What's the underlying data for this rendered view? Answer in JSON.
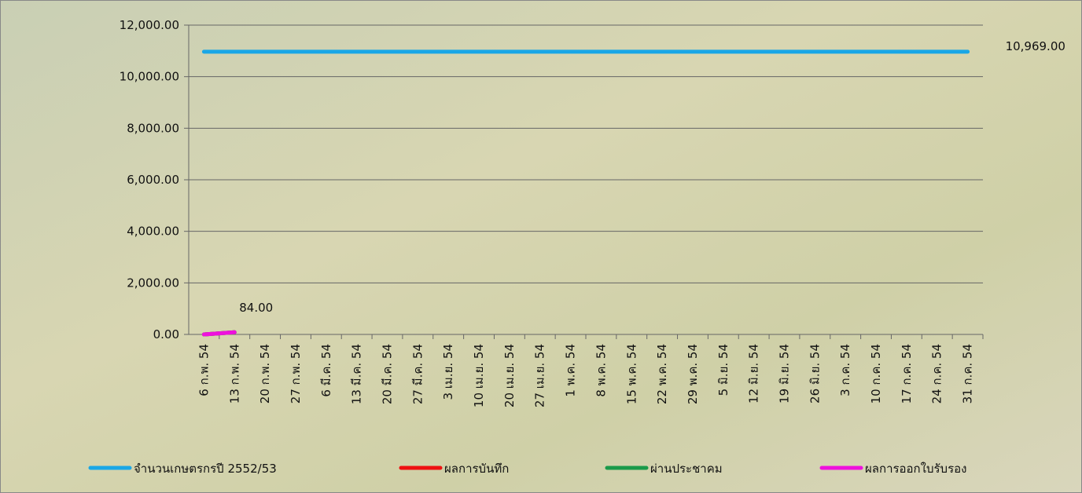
{
  "chart_data": {
    "type": "line",
    "categories": [
      "6 ก.พ. 54",
      "13 ก.พ. 54",
      "20 ก.พ. 54",
      "27 ก.พ. 54",
      "6 มี.ค. 54",
      "13 มี.ค. 54",
      "20 มี.ค. 54",
      "27 มี.ค. 54",
      "3 เม.ย. 54",
      "10 เม.ย. 54",
      "20 เม.ย. 54",
      "27 เม.ย. 54",
      "1 พ.ค. 54",
      "8 พ.ค. 54",
      "15 พ.ค. 54",
      "22 พ.ค. 54",
      "29 พ.ค. 54",
      "5 มิ.ย. 54",
      "12 มิ.ย. 54",
      "19 มิ.ย. 54",
      "26 มิ.ย. 54",
      "3 ก.ค. 54",
      "10 ก.ค. 54",
      "17 ก.ค. 54",
      "24 ก.ค. 54",
      "31 ก.ค. 54"
    ],
    "series": [
      {
        "name": "จำนวนเกษตรกรปี  2552/53",
        "color": "#1aa7e6",
        "values": [
          10969,
          10969,
          10969,
          10969,
          10969,
          10969,
          10969,
          10969,
          10969,
          10969,
          10969,
          10969,
          10969,
          10969,
          10969,
          10969,
          10969,
          10969,
          10969,
          10969,
          10969,
          10969,
          10969,
          10969,
          10969,
          10969
        ],
        "value_labels": [
          null,
          null,
          null,
          null,
          null,
          null,
          null,
          null,
          null,
          null,
          null,
          null,
          null,
          null,
          null,
          null,
          null,
          null,
          null,
          null,
          null,
          null,
          null,
          null,
          null,
          "10,969.00"
        ],
        "label_color": "#111111"
      },
      {
        "name": "ผลการบันทึก",
        "color": "#ee1111",
        "values": [
          0,
          84,
          null,
          null,
          null,
          null,
          null,
          null,
          null,
          null,
          null,
          null,
          null,
          null,
          null,
          null,
          null,
          null,
          null,
          null,
          null,
          null,
          null,
          null,
          null,
          null
        ],
        "value_labels": [
          null,
          "84.00",
          null,
          null,
          null,
          null,
          null,
          null,
          null,
          null,
          null,
          null,
          null,
          null,
          null,
          null,
          null,
          null,
          null,
          null,
          null,
          null,
          null,
          null,
          null,
          null
        ],
        "label_color": "#ee1111"
      },
      {
        "name": "ผ่านประชาคม",
        "color": "#1a9a4a",
        "values": [
          0,
          84,
          null,
          null,
          null,
          null,
          null,
          null,
          null,
          null,
          null,
          null,
          null,
          null,
          null,
          null,
          null,
          null,
          null,
          null,
          null,
          null,
          null,
          null,
          null,
          null
        ]
      },
      {
        "name": "ผลการออกใบรับรอง",
        "color": "#ee11dd",
        "values": [
          0,
          84,
          null,
          null,
          null,
          null,
          null,
          null,
          null,
          null,
          null,
          null,
          null,
          null,
          null,
          null,
          null,
          null,
          null,
          null,
          null,
          null,
          null,
          null,
          null,
          null
        ]
      }
    ],
    "ylim": [
      0,
      12000
    ],
    "yticks": [
      {
        "value": 0,
        "label": "0.00"
      },
      {
        "value": 2000,
        "label": "2,000.00"
      },
      {
        "value": 4000,
        "label": "4,000.00"
      },
      {
        "value": 6000,
        "label": "6,000.00"
      },
      {
        "value": 8000,
        "label": "8,000.00"
      },
      {
        "value": 10000,
        "label": "10,000.00"
      },
      {
        "value": 12000,
        "label": "12,000.00"
      }
    ],
    "grid": true,
    "legend": "bottom"
  }
}
